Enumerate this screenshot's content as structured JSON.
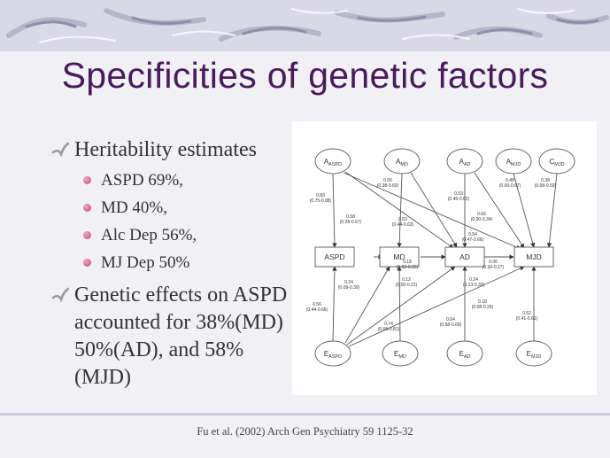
{
  "title": "Specificities of genetic factors",
  "bullets": [
    {
      "text": "Heritability estimates",
      "items": [
        "ASPD 69%,",
        "MD 40%,",
        "Alc Dep 56%,",
        "MJ Dep 50%"
      ]
    },
    {
      "text": "Genetic effects on ASPD accounted for 38%(MD) 50%(AD), and 58%(MJD)"
    }
  ],
  "diagram": {
    "latent_top": [
      "A_ASPD",
      "A_MD",
      "A_AD",
      "A_MJD",
      "C_MJD"
    ],
    "observed": [
      "ASPD",
      "MD",
      "AD",
      "MJD"
    ],
    "latent_bottom": [
      "E_ASPD",
      "E_MD",
      "E_AD",
      "E_MJD"
    ],
    "path_labels": [
      "0.83\n(0.75-0.88)",
      "0.58\n(0.28-0.67)",
      "0.55\n(0.38-0.69)",
      "0.53\n(0.44-0.63)",
      "0.53\n(0.45-0.62)",
      "0.66\n(0.00-0.34)",
      "0.54\n(0.47-0.66)",
      "0.48\n(0.00-0.67)",
      "0.38\n(0.08-0.59)",
      "0.18\n(0.02-0.25)",
      "0.06\n(0.00-0.27)",
      "0.24\n(0.09-0.39)",
      "0.12\n(0.00-0.21)",
      "0.24\n(0.13-0.33)",
      "0.56\n(0.44-0.66)",
      "0.18\n(0.08-0.26)",
      "0.74\n(0.65-0.81)",
      "0.64\n(0.58-0.69)",
      "0.52\n(0.41-0.61)"
    ]
  },
  "citation": "Fu et al. (2002) Arch Gen Psychiatry 59 1125-32"
}
